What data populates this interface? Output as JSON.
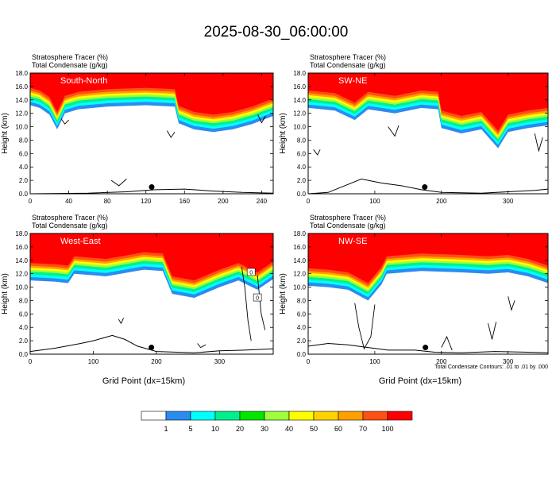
{
  "title": "2025-08-30_06:00:00",
  "footnote": "Total Condensate Contours: .01 to .01 by .000",
  "colorbar": {
    "colors": [
      "#ffffff",
      "#2a8cf0",
      "#00ffff",
      "#00f08c",
      "#00e600",
      "#a0ff3c",
      "#ffff00",
      "#ffd200",
      "#ffa000",
      "#ff5014",
      "#ff0000"
    ],
    "labels": [
      "1",
      "5",
      "10",
      "20",
      "30",
      "40",
      "50",
      "60",
      "70",
      "100"
    ]
  },
  "chart_data": [
    {
      "type": "heatmap",
      "name_label": "South-North",
      "header": [
        "Stratosphere Tracer   (%)",
        "Total Condensate   (g/kg)"
      ],
      "ylabel": "Height (km)",
      "xlabel": "",
      "xlim": [
        0,
        252
      ],
      "ylim": [
        0,
        18
      ],
      "xticks": [
        0,
        40,
        80,
        120,
        160,
        200,
        240
      ],
      "yticks": [
        "0.0",
        "2.0",
        "4.0",
        "6.0",
        "8.0",
        "10.0",
        "12.0",
        "14.0",
        "16.0",
        "18.0"
      ],
      "tracer_base_km": [
        [
          0,
          13.2
        ],
        [
          10,
          12.8
        ],
        [
          20,
          11.8
        ],
        [
          28,
          9.6
        ],
        [
          36,
          12.0
        ],
        [
          50,
          12.6
        ],
        [
          80,
          13.0
        ],
        [
          120,
          13.2
        ],
        [
          150,
          13.0
        ],
        [
          154,
          10.5
        ],
        [
          170,
          9.6
        ],
        [
          190,
          9.2
        ],
        [
          210,
          9.6
        ],
        [
          230,
          10.4
        ],
        [
          252,
          11.6
        ]
      ],
      "terrain_km": [
        [
          0,
          0.0
        ],
        [
          60,
          0.1
        ],
        [
          100,
          0.3
        ],
        [
          130,
          0.6
        ],
        [
          160,
          0.7
        ],
        [
          190,
          0.4
        ],
        [
          220,
          0.2
        ],
        [
          252,
          0.1
        ]
      ],
      "marker": {
        "x": 126,
        "y": 1.0
      },
      "contours": [
        [
          [
            32,
            11.2
          ],
          [
            36,
            10.4
          ],
          [
            40,
            11.0
          ]
        ],
        [
          [
            142,
            9.4
          ],
          [
            146,
            8.4
          ],
          [
            150,
            9.2
          ]
        ],
        [
          [
            236,
            11.8
          ],
          [
            240,
            10.6
          ],
          [
            244,
            11.6
          ]
        ],
        [
          [
            84,
            2.0
          ],
          [
            92,
            1.2
          ],
          [
            100,
            2.2
          ]
        ]
      ]
    },
    {
      "type": "heatmap",
      "name_label": "SW-NE",
      "header": [
        "Stratosphere Tracer   (%)",
        "Total Condensate   (g/kg)"
      ],
      "ylabel": "Height (km)",
      "xlabel": "",
      "xlim": [
        0,
        360
      ],
      "ylim": [
        0,
        18
      ],
      "xticks": [
        0,
        100,
        200,
        300
      ],
      "yticks": [
        "0.0",
        "2.0",
        "4.0",
        "6.0",
        "8.0",
        "10.0",
        "12.0",
        "14.0",
        "16.0",
        "18.0"
      ],
      "tracer_base_km": [
        [
          0,
          12.8
        ],
        [
          40,
          12.4
        ],
        [
          70,
          11.0
        ],
        [
          90,
          12.6
        ],
        [
          130,
          12.0
        ],
        [
          170,
          12.8
        ],
        [
          195,
          12.6
        ],
        [
          200,
          9.8
        ],
        [
          230,
          9.0
        ],
        [
          260,
          9.6
        ],
        [
          285,
          6.8
        ],
        [
          300,
          9.2
        ],
        [
          330,
          9.8
        ],
        [
          360,
          10.2
        ]
      ],
      "terrain_km": [
        [
          0,
          0.0
        ],
        [
          30,
          0.2
        ],
        [
          60,
          1.4
        ],
        [
          80,
          2.2
        ],
        [
          110,
          1.6
        ],
        [
          140,
          1.2
        ],
        [
          170,
          0.6
        ],
        [
          200,
          0.2
        ],
        [
          260,
          0.1
        ],
        [
          300,
          0.3
        ],
        [
          340,
          0.5
        ],
        [
          360,
          0.7
        ]
      ],
      "marker": {
        "x": 175,
        "y": 1.0
      },
      "contours": [
        [
          [
            8,
            6.6
          ],
          [
            14,
            5.8
          ],
          [
            18,
            6.6
          ]
        ],
        [
          [
            120,
            10.0
          ],
          [
            130,
            8.6
          ],
          [
            136,
            10.2
          ]
        ],
        [
          [
            340,
            9.0
          ],
          [
            346,
            6.4
          ],
          [
            352,
            8.4
          ]
        ]
      ]
    },
    {
      "type": "heatmap",
      "name_label": "West-East",
      "header": [
        "Stratosphere Tracer   (%)",
        "Total Condensate   (g/kg)"
      ],
      "ylabel": "Height (km)",
      "xlabel": "Grid Point (dx=15km)",
      "xlim": [
        0,
        385
      ],
      "ylim": [
        0,
        18
      ],
      "xticks": [
        0,
        100,
        200,
        300
      ],
      "yticks": [
        "0.0",
        "2.0",
        "4.0",
        "6.0",
        "8.0",
        "10.0",
        "12.0",
        "14.0",
        "16.0",
        "18.0"
      ],
      "tracer_base_km": [
        [
          0,
          11.0
        ],
        [
          40,
          10.8
        ],
        [
          60,
          10.6
        ],
        [
          70,
          12.0
        ],
        [
          120,
          11.6
        ],
        [
          180,
          12.6
        ],
        [
          210,
          12.4
        ],
        [
          225,
          9.0
        ],
        [
          260,
          8.4
        ],
        [
          300,
          10.0
        ],
        [
          330,
          11.0
        ],
        [
          360,
          9.6
        ],
        [
          385,
          11.2
        ]
      ],
      "terrain_km": [
        [
          0,
          0.4
        ],
        [
          40,
          0.9
        ],
        [
          80,
          1.6
        ],
        [
          100,
          2.0
        ],
        [
          130,
          2.8
        ],
        [
          150,
          2.2
        ],
        [
          170,
          1.2
        ],
        [
          200,
          0.4
        ],
        [
          260,
          0.2
        ],
        [
          300,
          0.5
        ],
        [
          340,
          0.6
        ],
        [
          385,
          0.8
        ]
      ],
      "marker": {
        "x": 192,
        "y": 1.0
      },
      "contours": [
        [
          [
            140,
            5.2
          ],
          [
            144,
            4.6
          ],
          [
            148,
            5.4
          ]
        ],
        [
          [
            335,
            13.0
          ],
          [
            340,
            10.0
          ],
          [
            345,
            5.0
          ],
          [
            350,
            2.0
          ]
        ],
        [
          [
            360,
            11.8
          ],
          [
            366,
            6.0
          ],
          [
            372,
            3.6
          ]
        ],
        [
          [
            265,
            1.6
          ],
          [
            270,
            1.0
          ],
          [
            278,
            1.4
          ]
        ]
      ],
      "box_labels": [
        {
          "x": 350,
          "y": 12.2,
          "text": "0"
        },
        {
          "x": 360,
          "y": 8.4,
          "text": "0"
        }
      ]
    },
    {
      "type": "heatmap",
      "name_label": "NW-SE",
      "header": [
        "Stratosphere Tracer   (%)",
        "Total Condensate   (g/kg)"
      ],
      "ylabel": "Height (km)",
      "xlabel": "Grid Point (dx=15km)",
      "xlim": [
        0,
        360
      ],
      "ylim": [
        0,
        18
      ],
      "xticks": [
        0,
        100,
        200,
        300
      ],
      "yticks": [
        "0.0",
        "2.0",
        "4.0",
        "6.0",
        "8.0",
        "10.0",
        "12.0",
        "14.0",
        "16.0",
        "18.0"
      ],
      "tracer_base_km": [
        [
          0,
          10.2
        ],
        [
          30,
          10.0
        ],
        [
          60,
          9.6
        ],
        [
          90,
          8.0
        ],
        [
          110,
          10.4
        ],
        [
          118,
          12.0
        ],
        [
          170,
          12.4
        ],
        [
          230,
          12.2
        ],
        [
          270,
          12.0
        ],
        [
          300,
          12.2
        ],
        [
          330,
          11.6
        ],
        [
          360,
          10.6
        ]
      ],
      "terrain_km": [
        [
          0,
          1.2
        ],
        [
          30,
          1.6
        ],
        [
          60,
          1.4
        ],
        [
          90,
          1.0
        ],
        [
          120,
          0.6
        ],
        [
          160,
          0.6
        ],
        [
          190,
          0.3
        ],
        [
          230,
          0.2
        ],
        [
          280,
          0.4
        ],
        [
          330,
          0.3
        ],
        [
          360,
          0.2
        ]
      ],
      "marker": {
        "x": 176,
        "y": 1.0
      },
      "contours": [
        [
          [
            70,
            7.6
          ],
          [
            76,
            4.0
          ],
          [
            84,
            0.8
          ],
          [
            94,
            2.6
          ],
          [
            100,
            7.4
          ]
        ],
        [
          [
            200,
            1.0
          ],
          [
            208,
            2.6
          ],
          [
            216,
            0.6
          ]
        ],
        [
          [
            270,
            4.6
          ],
          [
            276,
            2.2
          ],
          [
            282,
            4.8
          ]
        ],
        [
          [
            300,
            8.6
          ],
          [
            305,
            6.6
          ],
          [
            310,
            8.0
          ]
        ]
      ]
    }
  ]
}
